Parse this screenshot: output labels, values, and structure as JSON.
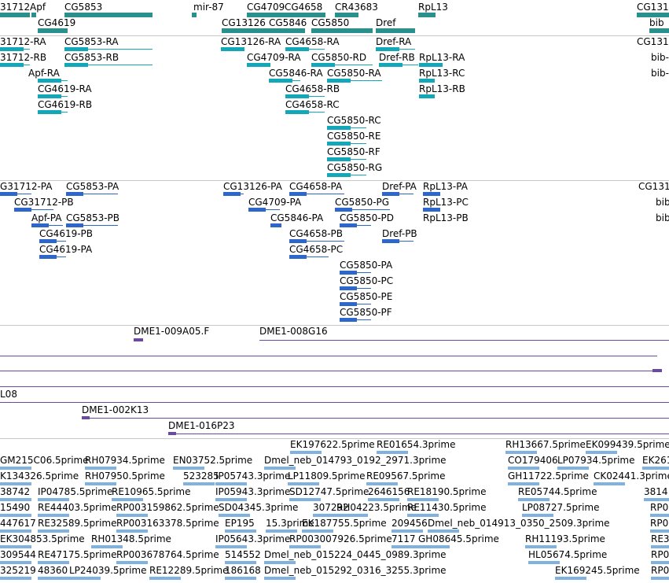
{
  "colors": {
    "gene": "#2b8f8b",
    "transcript": "#13a7b7",
    "protein": "#2f66c9",
    "clone": "#6a4aa0",
    "est": "#7fb2e0",
    "separator": "#c8c8c8"
  },
  "tracks": [
    {
      "name": "gene-track",
      "features": [
        {
          "label": "31712",
          "color": "gene"
        },
        {
          "label": "Apf",
          "color": "gene"
        },
        {
          "label": "CG5853",
          "color": "gene"
        },
        {
          "label": "mir-87",
          "color": "gene"
        },
        {
          "label": "CG4709",
          "color": "gene"
        },
        {
          "label": "CG4658",
          "color": "gene"
        },
        {
          "label": "CR43683",
          "color": "gene"
        },
        {
          "label": "RpL13",
          "color": "gene"
        },
        {
          "label": "CG131",
          "color": "gene"
        },
        {
          "label": "CG4619",
          "color": "gene"
        },
        {
          "label": "CG13126",
          "color": "gene"
        },
        {
          "label": "CG5846",
          "color": "gene"
        },
        {
          "label": "CG5850",
          "color": "gene"
        },
        {
          "label": "Dref",
          "color": "gene"
        },
        {
          "label": "bib",
          "color": "gene"
        }
      ]
    },
    {
      "name": "transcript-track",
      "features": [
        {
          "label": "31712-RA"
        },
        {
          "label": "CG5853-RA"
        },
        {
          "label": "CG13126-RA"
        },
        {
          "label": "CG4658-RA"
        },
        {
          "label": "Dref-RA"
        },
        {
          "label": "CG131"
        },
        {
          "label": "31712-RB"
        },
        {
          "label": "CG5853-RB"
        },
        {
          "label": "CG4709-RA"
        },
        {
          "label": "CG5850-RD"
        },
        {
          "label": "Dref-RB"
        },
        {
          "label": "RpL13-RA"
        },
        {
          "label": "bib-"
        },
        {
          "label": "Apf-RA"
        },
        {
          "label": "CG5846-RA"
        },
        {
          "label": "CG5850-RA"
        },
        {
          "label": "RpL13-RC"
        },
        {
          "label": "bib-"
        },
        {
          "label": "CG4619-RA"
        },
        {
          "label": "CG4658-RB"
        },
        {
          "label": "RpL13-RB"
        },
        {
          "label": "CG4619-RB"
        },
        {
          "label": "CG4658-RC"
        },
        {
          "label": "CG5850-RC"
        },
        {
          "label": "CG5850-RE"
        },
        {
          "label": "CG5850-RF"
        },
        {
          "label": "CG5850-RG"
        }
      ]
    },
    {
      "name": "protein-track",
      "features": [
        {
          "label": "G31712-PA"
        },
        {
          "label": "CG5853-PA"
        },
        {
          "label": "CG13126-PA"
        },
        {
          "label": "CG4658-PA"
        },
        {
          "label": "Dref-PA"
        },
        {
          "label": "RpL13-PA"
        },
        {
          "label": "CG131"
        },
        {
          "label": "CG31712-PB"
        },
        {
          "label": "CG4709-PA"
        },
        {
          "label": "CG5850-PG"
        },
        {
          "label": "RpL13-PC"
        },
        {
          "label": "bib"
        },
        {
          "label": "Apf-PA"
        },
        {
          "label": "CG5853-PB"
        },
        {
          "label": "CG5846-PA"
        },
        {
          "label": "CG5850-PD"
        },
        {
          "label": "RpL13-PB"
        },
        {
          "label": "bib-"
        },
        {
          "label": "CG4619-PB"
        },
        {
          "label": "CG4658-PB"
        },
        {
          "label": "Dref-PB"
        },
        {
          "label": "CG4619-PA"
        },
        {
          "label": "CG4658-PC"
        },
        {
          "label": "CG5850-PA"
        },
        {
          "label": "CG5850-PC"
        },
        {
          "label": "CG5850-PE"
        },
        {
          "label": "CG5850-PF"
        }
      ]
    },
    {
      "name": "clone-track",
      "features": [
        {
          "label": "DME1-009A05.F"
        },
        {
          "label": "DME1-008G16"
        },
        {
          "label": "L08"
        },
        {
          "label": "DME1-002K13"
        },
        {
          "label": "DME1-016P23"
        }
      ]
    },
    {
      "name": "est-track",
      "features": [
        {
          "label": "EK197622.5prime"
        },
        {
          "label": "RE01654.3prime"
        },
        {
          "label": "RH13667.5prime"
        },
        {
          "label": "EK099439.5prime"
        },
        {
          "label": "GM215C06.5prime"
        },
        {
          "label": "RH07934.5prime"
        },
        {
          "label": "EN03752.5prime"
        },
        {
          "label": "Dmel_neb_014793_0192_2971.3prime"
        },
        {
          "label": "CO179406"
        },
        {
          "label": "LP07934.5prime"
        },
        {
          "label": "EK261"
        },
        {
          "label": "K134326.5prime"
        },
        {
          "label": "RH07950.5prime"
        },
        {
          "label": "523285"
        },
        {
          "label": "IP05743.3prime"
        },
        {
          "label": "LP11809.5prime"
        },
        {
          "label": "RE09567.5prime"
        },
        {
          "label": "GH11722.5prime"
        },
        {
          "label": "CK02441.3prime"
        },
        {
          "label": "38742"
        },
        {
          "label": "IP04785.5prime"
        },
        {
          "label": "RE10965.5prime"
        },
        {
          "label": "IP05943.3prime"
        },
        {
          "label": "SD12747.5prime"
        },
        {
          "label": "2646156"
        },
        {
          "label": "RE18190.5prime"
        },
        {
          "label": "RE05744.5prime"
        },
        {
          "label": "3814"
        },
        {
          "label": "15490"
        },
        {
          "label": "RE44403.5prime"
        },
        {
          "label": "RP003159862.5prime"
        },
        {
          "label": "SD04345.3prime"
        },
        {
          "label": "307292"
        },
        {
          "label": "RH04223.5prime"
        },
        {
          "label": "RE11430.5prime"
        },
        {
          "label": "LP08727.5prime"
        },
        {
          "label": "RP0"
        },
        {
          "label": "447617"
        },
        {
          "label": "RE32589.5prime"
        },
        {
          "label": "RP003163378.5prime"
        },
        {
          "label": "EP195"
        },
        {
          "label": "15.3prime"
        },
        {
          "label": "EK187755.5prime"
        },
        {
          "label": "209456"
        },
        {
          "label": "Dmel_neb_014913_0350_2509.3prime"
        },
        {
          "label": "RP0"
        },
        {
          "label": "EK304853.5prime"
        },
        {
          "label": "RH01348.5prime"
        },
        {
          "label": "IP05643.3prime"
        },
        {
          "label": "RP003007926.5prime"
        },
        {
          "label": "7117"
        },
        {
          "label": "GH08645.5prime"
        },
        {
          "label": "RH11193.5prime"
        },
        {
          "label": "RE3"
        },
        {
          "label": "309544"
        },
        {
          "label": "RE47175.5prime"
        },
        {
          "label": "RP003678764.5prime"
        },
        {
          "label": "514552"
        },
        {
          "label": "Dmel_neb_015224_0445_0989.3prime"
        },
        {
          "label": "HL05674.5prime"
        },
        {
          "label": "RP0"
        },
        {
          "label": "325219"
        },
        {
          "label": "48360"
        },
        {
          "label": "LP24039.5prime"
        },
        {
          "label": "RE12289.5prime"
        },
        {
          "label": "186168"
        },
        {
          "label": "Dmel_neb_015292_0316_3255.3prime"
        },
        {
          "label": "EK169245.5prime"
        },
        {
          "label": "RP0"
        }
      ]
    }
  ]
}
